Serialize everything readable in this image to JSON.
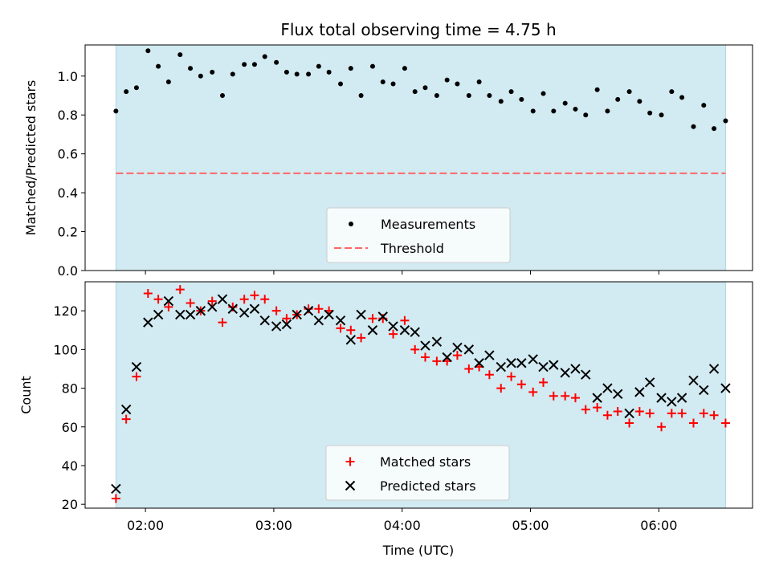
{
  "chart_data": {
    "title": "Flux total observing time = 4.75 h",
    "xlabel": "Time (UTC)",
    "x_ticks": [
      "02:00",
      "03:00",
      "04:00",
      "05:00",
      "06:00"
    ],
    "x_tick_hours": [
      2,
      3,
      4,
      5,
      6
    ],
    "xlim": [
      1.53,
      6.73
    ],
    "shaded_span": [
      1.77,
      6.52
    ],
    "colors": {
      "shade": "#add8e6",
      "measure": "#000000",
      "threshold": "#ff6666",
      "matched": "#ff0000",
      "predicted": "#000000"
    },
    "panels": [
      {
        "type": "scatter",
        "ylabel": "Matched/Predicted stars",
        "ylim": [
          0,
          1.16
        ],
        "y_ticks": [
          0.0,
          0.2,
          0.4,
          0.6,
          0.8,
          1.0
        ],
        "y_tick_labels": [
          "0.0",
          "0.2",
          "0.4",
          "0.6",
          "0.8",
          "1.0"
        ],
        "threshold": 0.5,
        "legend": [
          "Measurements",
          "Threshold"
        ],
        "legend_position": "lower-center",
        "series": [
          {
            "name": "Measurements",
            "x": [
              1.77,
              1.85,
              1.93,
              2.02,
              2.1,
              2.18,
              2.27,
              2.35,
              2.43,
              2.52,
              2.6,
              2.68,
              2.77,
              2.85,
              2.93,
              3.02,
              3.1,
              3.18,
              3.27,
              3.35,
              3.43,
              3.52,
              3.6,
              3.68,
              3.77,
              3.85,
              3.93,
              4.02,
              4.1,
              4.18,
              4.27,
              4.35,
              4.43,
              4.52,
              4.6,
              4.68,
              4.77,
              4.85,
              4.93,
              5.02,
              5.1,
              5.18,
              5.27,
              5.35,
              5.43,
              5.52,
              5.6,
              5.68,
              5.77,
              5.85,
              5.93,
              6.02,
              6.1,
              6.18,
              6.27,
              6.35,
              6.43,
              6.52
            ],
            "y": [
              0.82,
              0.92,
              0.94,
              1.13,
              1.05,
              0.97,
              1.11,
              1.04,
              1.0,
              1.02,
              0.9,
              1.01,
              1.06,
              1.06,
              1.1,
              1.07,
              1.02,
              1.01,
              1.01,
              1.05,
              1.02,
              0.96,
              1.04,
              0.9,
              1.05,
              0.97,
              0.96,
              1.04,
              0.92,
              0.94,
              0.9,
              0.98,
              0.96,
              0.9,
              0.97,
              0.9,
              0.87,
              0.92,
              0.88,
              0.82,
              0.91,
              0.82,
              0.86,
              0.83,
              0.8,
              0.93,
              0.82,
              0.88,
              0.92,
              0.87,
              0.81,
              0.8,
              0.92,
              0.89,
              0.74,
              0.85,
              0.73,
              0.77
            ]
          }
        ]
      },
      {
        "type": "scatter",
        "ylabel": "Count",
        "ylim": [
          18,
          135
        ],
        "y_ticks": [
          20,
          40,
          60,
          80,
          100,
          120
        ],
        "y_tick_labels": [
          "20",
          "40",
          "60",
          "80",
          "100",
          "120"
        ],
        "legend": [
          "Matched stars",
          "Predicted stars"
        ],
        "legend_position": "lower-center",
        "series": [
          {
            "name": "Matched stars",
            "marker": "plus",
            "x": [
              1.77,
              1.85,
              1.93,
              2.02,
              2.1,
              2.18,
              2.27,
              2.35,
              2.43,
              2.52,
              2.6,
              2.68,
              2.77,
              2.85,
              2.93,
              3.02,
              3.1,
              3.18,
              3.27,
              3.35,
              3.43,
              3.52,
              3.6,
              3.68,
              3.77,
              3.85,
              3.93,
              4.02,
              4.1,
              4.18,
              4.27,
              4.35,
              4.43,
              4.52,
              4.6,
              4.68,
              4.77,
              4.85,
              4.93,
              5.02,
              5.1,
              5.18,
              5.27,
              5.35,
              5.43,
              5.52,
              5.6,
              5.68,
              5.77,
              5.85,
              5.93,
              6.02,
              6.1,
              6.18,
              6.27,
              6.35,
              6.43,
              6.52
            ],
            "y": [
              23,
              64,
              86,
              129,
              126,
              122,
              131,
              124,
              120,
              125,
              114,
              122,
              126,
              128,
              126,
              120,
              116,
              118,
              121,
              121,
              120,
              111,
              110,
              106,
              116,
              116,
              108,
              115,
              100,
              96,
              94,
              94,
              97,
              90,
              91,
              87,
              80,
              86,
              82,
              78,
              83,
              76,
              76,
              75,
              69,
              70,
              66,
              68,
              62,
              68,
              67,
              60,
              67,
              67,
              62,
              67,
              66,
              62
            ]
          },
          {
            "name": "Predicted stars",
            "marker": "x",
            "x": [
              1.77,
              1.85,
              1.93,
              2.02,
              2.1,
              2.18,
              2.27,
              2.35,
              2.43,
              2.52,
              2.6,
              2.68,
              2.77,
              2.85,
              2.93,
              3.02,
              3.1,
              3.18,
              3.27,
              3.35,
              3.43,
              3.52,
              3.6,
              3.68,
              3.77,
              3.85,
              3.93,
              4.02,
              4.1,
              4.18,
              4.27,
              4.35,
              4.43,
              4.52,
              4.6,
              4.68,
              4.77,
              4.85,
              4.93,
              5.02,
              5.1,
              5.18,
              5.27,
              5.35,
              5.43,
              5.52,
              5.6,
              5.68,
              5.77,
              5.85,
              5.93,
              6.02,
              6.1,
              6.18,
              6.27,
              6.35,
              6.43,
              6.52
            ],
            "y": [
              28,
              69,
              91,
              114,
              118,
              125,
              118,
              118,
              120,
              122,
              126,
              121,
              119,
              121,
              115,
              112,
              113,
              118,
              120,
              115,
              118,
              115,
              105,
              118,
              110,
              117,
              112,
              110,
              109,
              102,
              104,
              96,
              101,
              100,
              93,
              97,
              91,
              93,
              93,
              95,
              91,
              92,
              88,
              90,
              87,
              75,
              80,
              77,
              67,
              78,
              83,
              75,
              73,
              75,
              84,
              79,
              90,
              80
            ]
          }
        ]
      }
    ]
  }
}
